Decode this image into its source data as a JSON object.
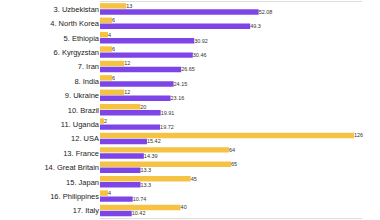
{
  "chart_data": {
    "type": "bar",
    "orientation": "horizontal",
    "data_labels": true,
    "tick_labels": "y",
    "grid": false,
    "categories": [
      "3. Uzbekistan",
      "4. North Korea",
      "5. Ethiopia",
      "6. Kyrgyzstan",
      "7. Iran",
      "8. India",
      "9. Ukraine",
      "10. Brazil",
      "11. Uganda",
      "12. USA",
      "13. France",
      "14. Great Britain",
      "15. Japan",
      "16. Philippines",
      "17. Italy"
    ],
    "xlim": [
      0,
      130
    ],
    "x2lim": [
      0,
      86
    ],
    "series": [
      {
        "color": "#f6c244",
        "values": [
          13,
          6,
          4,
          6,
          12,
          6,
          12,
          20,
          2,
          126,
          64,
          65,
          45,
          4,
          40
        ]
      },
      {
        "color": "#7d45e8",
        "axis": "x2",
        "values": [
          52.08,
          49.3,
          30.92,
          30.46,
          26.65,
          24.15,
          23.16,
          19.91,
          19.72,
          15.42,
          14.39,
          13.3,
          13.3,
          10.74,
          10.42
        ]
      }
    ]
  }
}
